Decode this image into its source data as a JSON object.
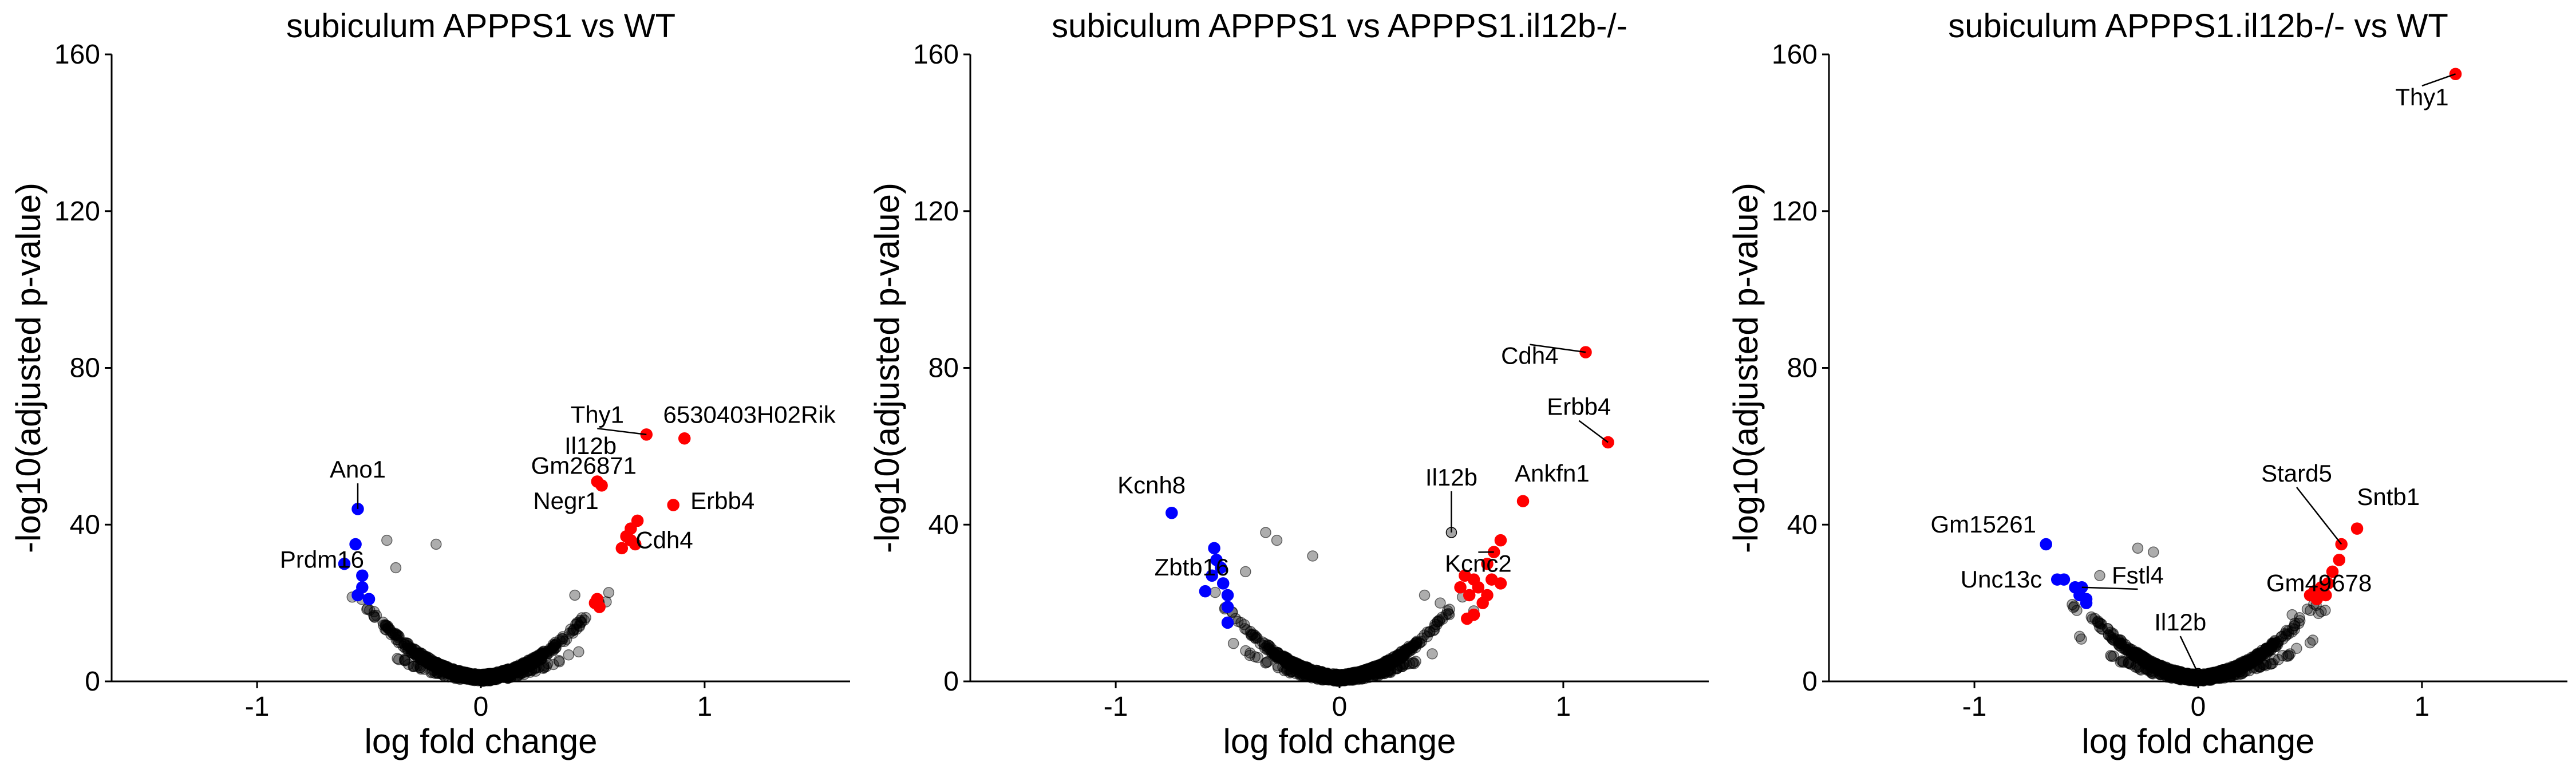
{
  "chart_data": [
    {
      "type": "scatter",
      "title": "subiculum APPPS1 vs WT",
      "xlabel": "log fold change",
      "ylabel": "-log10(adjusted p-value)",
      "xlim": [
        -1.65,
        1.65
      ],
      "ylim": [
        0,
        160
      ],
      "xticks": [
        -1,
        0,
        1
      ],
      "yticks": [
        0,
        40,
        80,
        120,
        160
      ],
      "grid": false,
      "colors": {
        "up": "#ff0000",
        "down": "#0000ff",
        "ns": "#000000"
      },
      "seed": 11,
      "background": {
        "n": 1100,
        "spread": 0.42,
        "max": 23
      },
      "outliers": [
        [
          -0.42,
          36
        ],
        [
          -0.2,
          35
        ],
        [
          -0.38,
          29
        ],
        [
          0.42,
          22
        ]
      ],
      "points": [
        {
          "x": -0.55,
          "y": 44,
          "sig": "down",
          "label": "Ano1",
          "lx": -0.55,
          "ly": 52,
          "line": true
        },
        {
          "x": -0.56,
          "y": 35,
          "sig": "down"
        },
        {
          "x": -0.61,
          "y": 30,
          "sig": "down",
          "label": "Prdm16",
          "lx": -0.71,
          "ly": 29
        },
        {
          "x": -0.53,
          "y": 27,
          "sig": "down"
        },
        {
          "x": -0.53,
          "y": 24,
          "sig": "down"
        },
        {
          "x": -0.55,
          "y": 22,
          "sig": "down"
        },
        {
          "x": -0.5,
          "y": 21,
          "sig": "down"
        },
        {
          "x": 0.91,
          "y": 62,
          "sig": "up",
          "label": "6530403H02Rik",
          "lx": 1.2,
          "ly": 66
        },
        {
          "x": 0.74,
          "y": 63,
          "sig": "up",
          "label": "Thy1",
          "lx": 0.52,
          "ly": 66,
          "line": true
        },
        {
          "x": 0.52,
          "y": 51,
          "sig": "up",
          "label": "Il12b",
          "lx": 0.49,
          "ly": 58
        },
        {
          "x": 0.54,
          "y": 50,
          "sig": "up",
          "label": "Gm26871",
          "lx": 0.46,
          "ly": 53
        },
        {
          "x": 0.86,
          "y": 45,
          "sig": "up",
          "label": "Erbb4",
          "lx": 1.08,
          "ly": 44
        },
        {
          "x": 0.67,
          "y": 39,
          "sig": "up",
          "label": "Negr1",
          "lx": 0.38,
          "ly": 44
        },
        {
          "x": 0.7,
          "y": 41,
          "sig": "up"
        },
        {
          "x": 0.65,
          "y": 37,
          "sig": "up"
        },
        {
          "x": 0.69,
          "y": 35,
          "sig": "up",
          "label": "Cdh4",
          "lx": 0.82,
          "ly": 34
        },
        {
          "x": 0.63,
          "y": 34,
          "sig": "up"
        },
        {
          "x": 0.67,
          "y": 36,
          "sig": "up"
        },
        {
          "x": 0.51,
          "y": 20,
          "sig": "up"
        },
        {
          "x": 0.53,
          "y": 19,
          "sig": "up"
        },
        {
          "x": 0.52,
          "y": 21,
          "sig": "up"
        }
      ]
    },
    {
      "type": "scatter",
      "title": "subiculum APPPS1 vs APPPS1.il12b-/-",
      "xlabel": "log fold change",
      "ylabel": "-log10(adjusted p-value)",
      "xlim": [
        -1.65,
        1.65
      ],
      "ylim": [
        0,
        160
      ],
      "xticks": [
        -1,
        0,
        1
      ],
      "yticks": [
        0,
        40,
        80,
        120,
        160
      ],
      "grid": false,
      "colors": {
        "up": "#ff0000",
        "down": "#0000ff",
        "ns": "#000000"
      },
      "seed": 23,
      "background": {
        "n": 1100,
        "spread": 0.42,
        "max": 23
      },
      "outliers": [
        [
          -0.33,
          38
        ],
        [
          -0.28,
          36
        ],
        [
          -0.12,
          32
        ],
        [
          -0.42,
          28
        ],
        [
          0.38,
          22
        ],
        [
          0.45,
          20
        ],
        [
          0.6,
          18
        ]
      ],
      "points": [
        {
          "x": 1.1,
          "y": 84,
          "sig": "up",
          "label": "Cdh4",
          "lx": 0.85,
          "ly": 81,
          "line": true
        },
        {
          "x": 1.2,
          "y": 61,
          "sig": "up",
          "label": "Erbb4",
          "lx": 1.07,
          "ly": 68,
          "line": true
        },
        {
          "x": 0.82,
          "y": 46,
          "sig": "up",
          "label": "Ankfn1",
          "lx": 0.95,
          "ly": 51
        },
        {
          "x": 0.72,
          "y": 36,
          "sig": "up"
        },
        {
          "x": 0.69,
          "y": 33,
          "sig": "up",
          "label": "Kcnc2",
          "lx": 0.62,
          "ly": 28,
          "line": true
        },
        {
          "x": 0.66,
          "y": 30,
          "sig": "up"
        },
        {
          "x": 0.56,
          "y": 27,
          "sig": "up"
        },
        {
          "x": 0.6,
          "y": 26,
          "sig": "up"
        },
        {
          "x": 0.68,
          "y": 26,
          "sig": "up"
        },
        {
          "x": 0.72,
          "y": 25,
          "sig": "up"
        },
        {
          "x": 0.54,
          "y": 24,
          "sig": "up"
        },
        {
          "x": 0.62,
          "y": 24,
          "sig": "up"
        },
        {
          "x": 0.66,
          "y": 22,
          "sig": "up"
        },
        {
          "x": 0.58,
          "y": 22,
          "sig": "up"
        },
        {
          "x": 0.64,
          "y": 20,
          "sig": "up"
        },
        {
          "x": 0.6,
          "y": 17,
          "sig": "up"
        },
        {
          "x": 0.57,
          "y": 16,
          "sig": "up"
        },
        {
          "x": 0.5,
          "y": 38,
          "sig": "ns",
          "label": "Il12b",
          "lx": 0.5,
          "ly": 50,
          "line": true
        },
        {
          "x": -0.75,
          "y": 43,
          "sig": "down",
          "label": "Kcnh8",
          "lx": -0.84,
          "ly": 48
        },
        {
          "x": -0.56,
          "y": 34,
          "sig": "down"
        },
        {
          "x": -0.55,
          "y": 31,
          "sig": "down"
        },
        {
          "x": -0.53,
          "y": 29,
          "sig": "down"
        },
        {
          "x": -0.57,
          "y": 27,
          "sig": "down",
          "label": "Zbtb16",
          "lx": -0.66,
          "ly": 27
        },
        {
          "x": -0.52,
          "y": 25,
          "sig": "down"
        },
        {
          "x": -0.6,
          "y": 23,
          "sig": "down"
        },
        {
          "x": -0.5,
          "y": 22,
          "sig": "down"
        },
        {
          "x": -0.5,
          "y": 19,
          "sig": "down"
        },
        {
          "x": -0.5,
          "y": 15,
          "sig": "down"
        }
      ]
    },
    {
      "type": "scatter",
      "title": "subiculum APPPS1.il12b-/- vs WT",
      "xlabel": "log fold change",
      "ylabel": "-log10(adjusted p-value)",
      "xlim": [
        -1.65,
        1.65
      ],
      "ylim": [
        0,
        160
      ],
      "xticks": [
        -1,
        0,
        1
      ],
      "yticks": [
        0,
        40,
        80,
        120,
        160
      ],
      "grid": false,
      "colors": {
        "up": "#ff0000",
        "down": "#0000ff",
        "ns": "#000000"
      },
      "seed": 37,
      "background": {
        "n": 1100,
        "spread": 0.42,
        "max": 20
      },
      "outliers": [
        [
          -0.27,
          34
        ],
        [
          -0.2,
          33
        ],
        [
          -0.44,
          27
        ],
        [
          0.42,
          17
        ]
      ],
      "points": [
        {
          "x": 1.15,
          "y": 155,
          "sig": "up",
          "label": "Thy1",
          "lx": 1.0,
          "ly": 147,
          "line": true
        },
        {
          "x": 0.71,
          "y": 39,
          "sig": "up",
          "label": "Sntb1",
          "lx": 0.85,
          "ly": 45
        },
        {
          "x": 0.64,
          "y": 35,
          "sig": "up",
          "label": "Stard5",
          "lx": 0.44,
          "ly": 51,
          "line": true
        },
        {
          "x": 0.63,
          "y": 31,
          "sig": "up"
        },
        {
          "x": 0.6,
          "y": 28,
          "sig": "up"
        },
        {
          "x": 0.58,
          "y": 25,
          "sig": "up"
        },
        {
          "x": 0.55,
          "y": 24,
          "sig": "up"
        },
        {
          "x": 0.52,
          "y": 23,
          "sig": "up"
        },
        {
          "x": 0.57,
          "y": 22,
          "sig": "up"
        },
        {
          "x": 0.5,
          "y": 22,
          "sig": "up",
          "label": "Gm49678",
          "lx": 0.54,
          "ly": 23
        },
        {
          "x": 0.53,
          "y": 21,
          "sig": "up"
        },
        {
          "x": -0.68,
          "y": 35,
          "sig": "down",
          "label": "Gm15261",
          "lx": -0.96,
          "ly": 38
        },
        {
          "x": -0.6,
          "y": 26,
          "sig": "down",
          "label": "Unc13c",
          "lx": -0.88,
          "ly": 24
        },
        {
          "x": -0.63,
          "y": 26,
          "sig": "down"
        },
        {
          "x": -0.55,
          "y": 24,
          "sig": "down"
        },
        {
          "x": -0.52,
          "y": 24,
          "sig": "down",
          "label": "Fstl4",
          "lx": -0.27,
          "ly": 25,
          "line": true
        },
        {
          "x": -0.53,
          "y": 22,
          "sig": "down"
        },
        {
          "x": -0.5,
          "y": 21,
          "sig": "down"
        },
        {
          "x": -0.5,
          "y": 20,
          "sig": "down"
        },
        {
          "x": 0.0,
          "y": 2,
          "sig": "ns",
          "label": "Il12b",
          "lx": -0.08,
          "ly": 13,
          "line": true
        }
      ]
    }
  ]
}
